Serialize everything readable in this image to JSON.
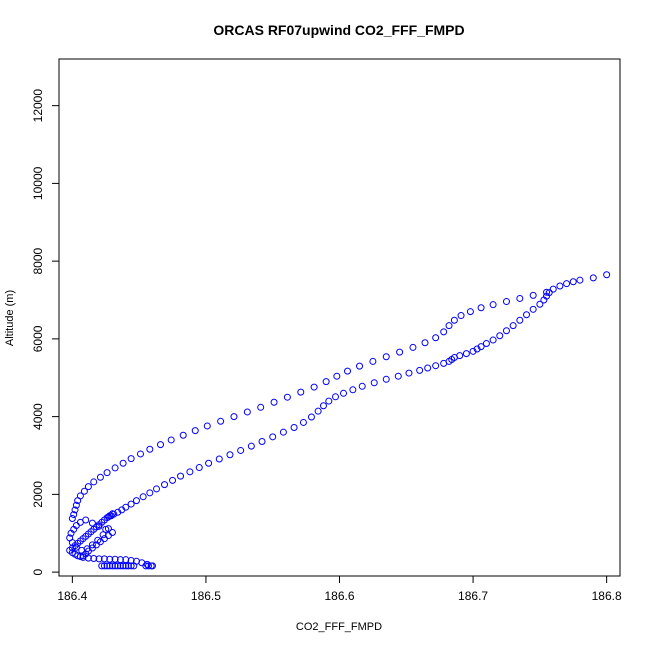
{
  "chart_data": {
    "type": "scatter",
    "title": "ORCAS RF07upwind CO2_FFF_FMPD",
    "xlabel": "CO2_FFF_FMPD",
    "ylabel": "Altitude (m)",
    "xlim": [
      186.39,
      186.81
    ],
    "ylim": [
      -100,
      13200
    ],
    "xticks": [
      186.4,
      186.5,
      186.6,
      186.7,
      186.8
    ],
    "xtick_labels": [
      "186.4",
      "186.5",
      "186.6",
      "186.7",
      "186.8"
    ],
    "yticks": [
      0,
      2000,
      4000,
      6000,
      8000,
      10000,
      12000
    ],
    "ytick_labels": [
      "0",
      "2000",
      "4000",
      "6000",
      "8000",
      "10000",
      "12000"
    ],
    "grid": false,
    "legend": "none",
    "marker": "open-circle",
    "color": "#0000ff",
    "series": [
      {
        "x": [
          186.8,
          186.79,
          186.78,
          186.775,
          186.77,
          186.765,
          186.76,
          186.757,
          186.755,
          186.753,
          186.75,
          186.745,
          186.74,
          186.735,
          186.73,
          186.725,
          186.72,
          186.715,
          186.71,
          186.706,
          186.703,
          186.7,
          186.695,
          186.69,
          186.686,
          186.684,
          186.682,
          186.678,
          186.672,
          186.666,
          186.66,
          186.652,
          186.644,
          186.635,
          186.626,
          186.617,
          186.61,
          186.603,
          186.597,
          186.592,
          186.588,
          186.584,
          186.579,
          186.573,
          186.566,
          186.558,
          186.55,
          186.542,
          186.534,
          186.526,
          186.518,
          186.51,
          186.502,
          186.495,
          186.488,
          186.481,
          186.475,
          186.469,
          186.463,
          186.458,
          186.453,
          186.448,
          186.444,
          186.44,
          186.437,
          186.434,
          186.431,
          186.429,
          186.427
        ],
        "y": [
          7650,
          7570,
          7510,
          7470,
          7420,
          7360,
          7280,
          7190,
          7100,
          7000,
          6890,
          6760,
          6620,
          6480,
          6340,
          6210,
          6080,
          5970,
          5880,
          5800,
          5740,
          5680,
          5620,
          5570,
          5520,
          5470,
          5420,
          5370,
          5310,
          5250,
          5190,
          5120,
          5040,
          4960,
          4870,
          4780,
          4690,
          4600,
          4510,
          4400,
          4280,
          4140,
          3990,
          3850,
          3720,
          3600,
          3480,
          3360,
          3240,
          3130,
          3020,
          2910,
          2800,
          2690,
          2580,
          2470,
          2360,
          2250,
          2140,
          2040,
          1940,
          1840,
          1750,
          1670,
          1600,
          1540,
          1490,
          1450,
          1420
        ]
      },
      {
        "x": [
          186.755,
          186.745,
          186.735,
          186.725,
          186.715,
          186.706,
          186.698,
          186.691,
          186.686,
          186.682,
          186.678,
          186.672,
          186.664,
          186.655,
          186.645,
          186.635,
          186.625,
          186.615,
          186.606,
          186.598,
          186.59,
          186.581,
          186.571,
          186.561,
          186.551,
          186.541,
          186.531,
          186.521,
          186.511,
          186.501,
          186.492,
          186.483,
          186.474,
          186.466,
          186.458,
          186.451,
          186.444,
          186.438,
          186.432,
          186.426,
          186.421,
          186.416,
          186.412,
          186.409,
          186.406,
          186.404,
          186.403,
          186.402,
          186.401,
          186.4
        ],
        "y": [
          7200,
          7120,
          7040,
          6960,
          6880,
          6800,
          6700,
          6600,
          6480,
          6340,
          6180,
          6030,
          5900,
          5780,
          5660,
          5540,
          5420,
          5300,
          5170,
          5040,
          4900,
          4760,
          4630,
          4500,
          4370,
          4240,
          4120,
          4000,
          3880,
          3760,
          3640,
          3520,
          3400,
          3280,
          3160,
          3040,
          2920,
          2800,
          2680,
          2560,
          2440,
          2320,
          2200,
          2080,
          1960,
          1840,
          1720,
          1600,
          1480,
          1380
        ]
      },
      {
        "x": [
          186.43,
          186.428,
          186.426,
          186.424,
          186.422,
          186.42,
          186.418,
          186.416,
          186.414,
          186.412,
          186.41,
          186.408,
          186.406,
          186.404,
          186.402,
          186.4,
          186.398,
          186.4,
          186.402,
          186.404,
          186.406,
          186.408,
          186.41,
          186.412,
          186.415,
          186.418,
          186.421,
          186.424,
          186.427,
          186.43,
          186.425,
          186.42,
          186.415,
          186.41,
          186.406,
          186.403,
          186.401,
          186.399,
          186.398,
          186.4,
          186.403,
          186.407,
          186.411,
          186.415,
          186.419,
          186.423,
          186.427
        ],
        "y": [
          1500,
          1450,
          1400,
          1340,
          1280,
          1220,
          1160,
          1100,
          1040,
          980,
          920,
          860,
          800,
          740,
          680,
          620,
          560,
          500,
          460,
          420,
          400,
          420,
          470,
          540,
          620,
          700,
          780,
          860,
          940,
          1020,
          1100,
          1180,
          1260,
          1340,
          1280,
          1200,
          1100,
          1000,
          880,
          760,
          640,
          560,
          600,
          700,
          820,
          960,
          1120
        ]
      },
      {
        "x": [
          186.422,
          186.424,
          186.426,
          186.428,
          186.43,
          186.432,
          186.434,
          186.436,
          186.438,
          186.44,
          186.442,
          186.444,
          186.446,
          186.455,
          186.457,
          186.459,
          186.46,
          186.456,
          186.452,
          186.448,
          186.444,
          186.44,
          186.436,
          186.432,
          186.428,
          186.424,
          186.42,
          186.416,
          186.412,
          186.408
        ],
        "y": [
          160,
          160,
          160,
          160,
          160,
          160,
          160,
          160,
          160,
          160,
          160,
          160,
          160,
          160,
          160,
          160,
          160,
          200,
          240,
          280,
          300,
          320,
          320,
          330,
          330,
          340,
          340,
          350,
          360,
          380
        ]
      }
    ]
  }
}
